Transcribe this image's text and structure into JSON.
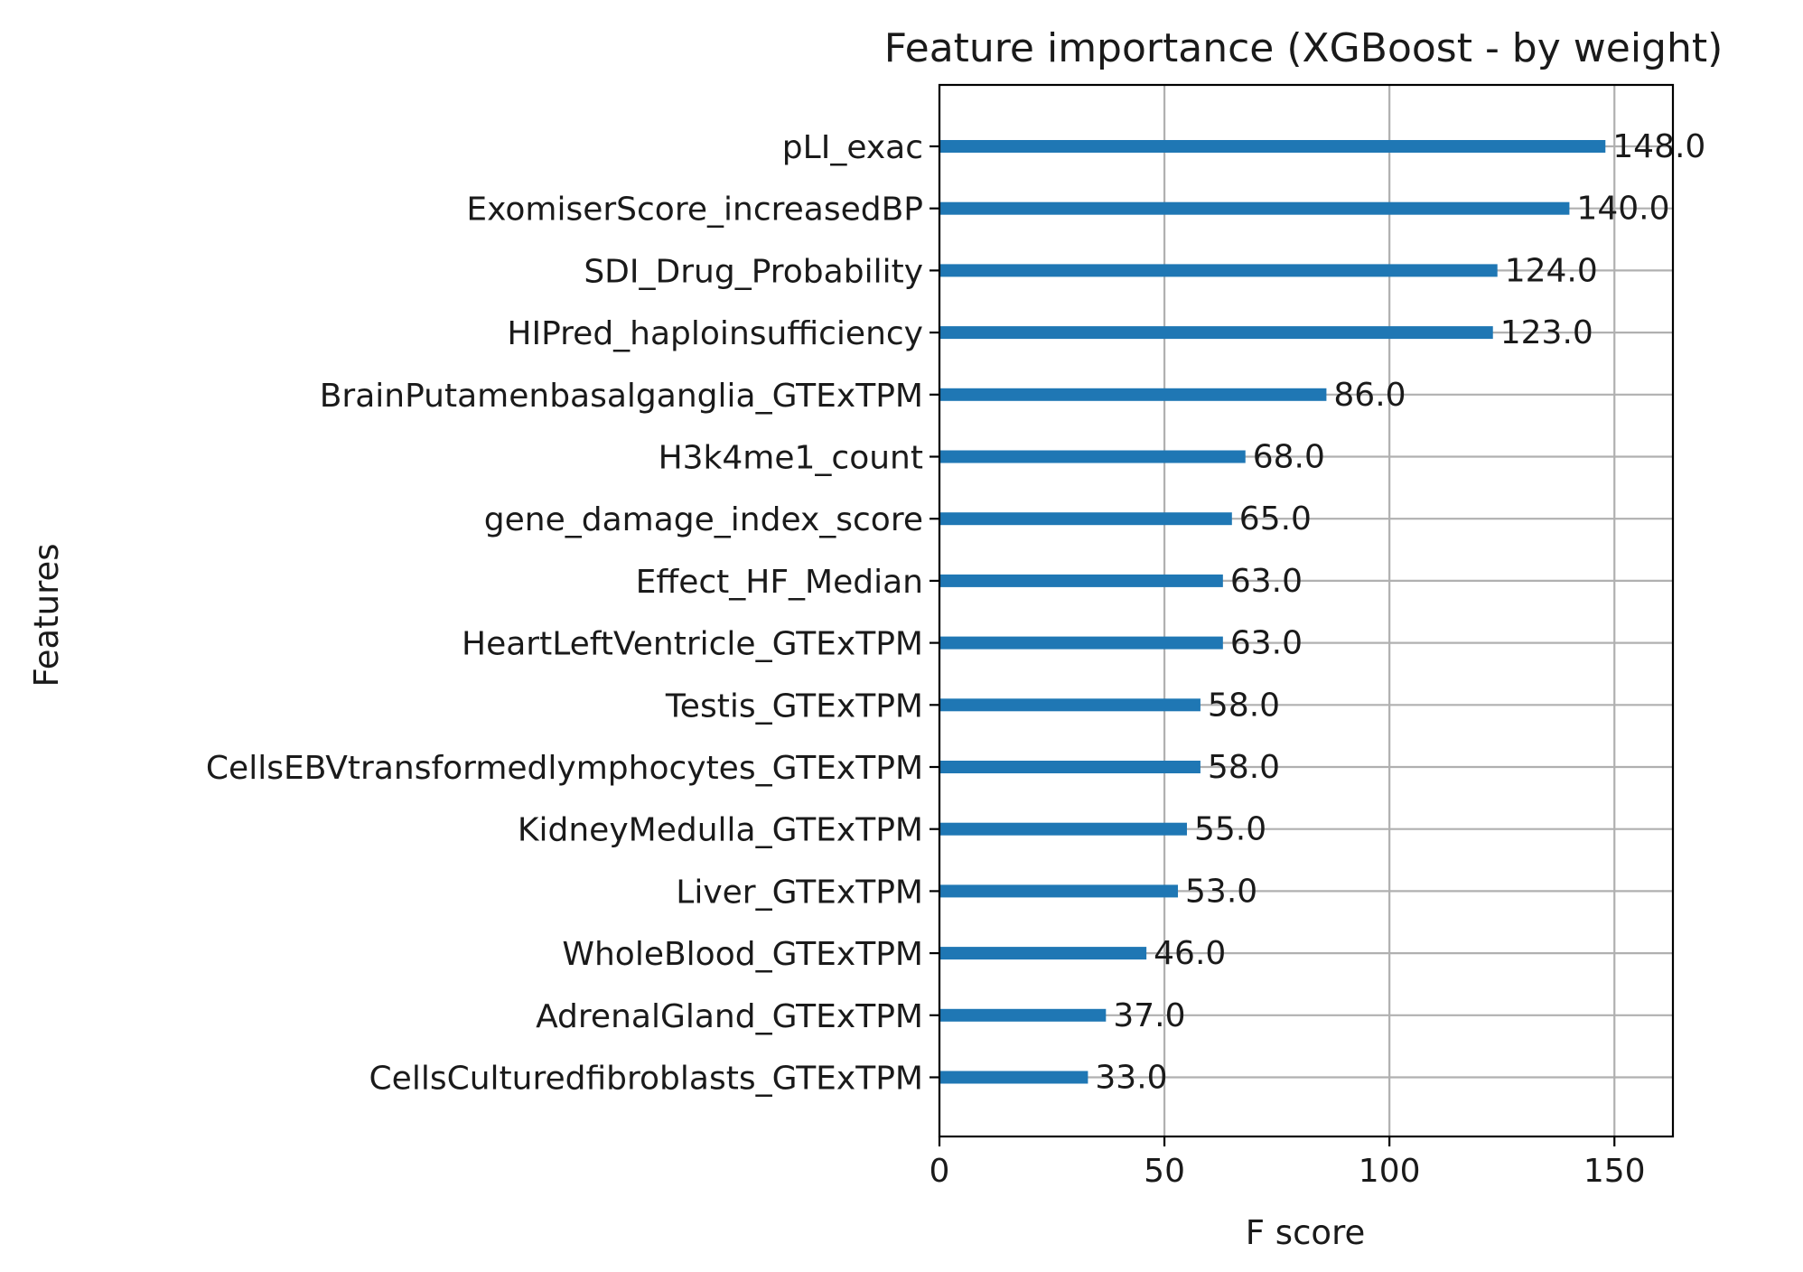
{
  "chart_data": {
    "type": "bar",
    "orientation": "horizontal",
    "title": "Feature importance (XGBoost - by weight)",
    "xlabel": "F score",
    "ylabel": "Features",
    "xlim": [
      0,
      163
    ],
    "xticks": [
      0,
      50,
      100,
      150
    ],
    "xtick_labels": [
      "0",
      "50",
      "100",
      "150"
    ],
    "grid": true,
    "bar_color": "#1f77b4",
    "categories": [
      "pLI_exac",
      "ExomiserScore_increasedBP",
      "SDI_Drug_Probability",
      "HIPred_haploinsufficiency",
      "BrainPutamenbasalganglia_GTExTPM",
      "H3k4me1_count",
      "gene_damage_index_score",
      "Effect_HF_Median",
      "HeartLeftVentricle_GTExTPM",
      "Testis_GTExTPM",
      "CellsEBVtransformedlymphocytes_GTExTPM",
      "KidneyMedulla_GTExTPM",
      "Liver_GTExTPM",
      "WholeBlood_GTExTPM",
      "AdrenalGland_GTExTPM",
      "CellsCulturedfibroblasts_GTExTPM"
    ],
    "values": [
      148,
      140,
      124,
      123,
      86,
      68,
      65,
      63,
      63,
      58,
      58,
      55,
      53,
      46,
      37,
      33
    ],
    "value_labels": [
      "148.0",
      "140.0",
      "124.0",
      "123.0",
      "86.0",
      "68.0",
      "65.0",
      "63.0",
      "63.0",
      "58.0",
      "58.0",
      "55.0",
      "53.0",
      "46.0",
      "37.0",
      "33.0"
    ]
  }
}
